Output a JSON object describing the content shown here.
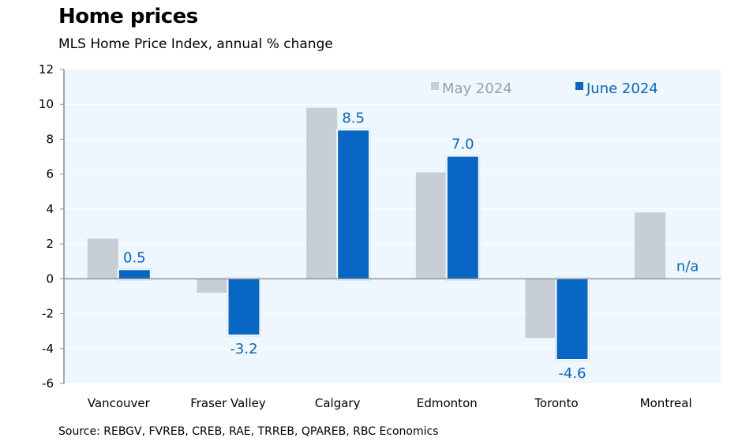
{
  "header": {
    "title": "Home prices",
    "subtitle": "MLS Home Price Index, annual % change"
  },
  "footer": {
    "source": "Source: REBGV, FVREB, CREB, RAE, TRREB, QPAREB, RBC Economics"
  },
  "colors": {
    "may": "#c8ced6",
    "june": "#0866c4",
    "plot_bg": "#eef6fe",
    "may_legend_text": "#9aa0a8"
  },
  "chart_data": {
    "type": "bar",
    "title": "Home prices",
    "subtitle": "MLS Home Price Index, annual % change",
    "xlabel": "",
    "ylabel": "",
    "ylim": [
      -6,
      12
    ],
    "yticks": [
      12,
      10,
      8,
      6,
      4,
      2,
      0,
      -2,
      -4,
      -6
    ],
    "ytick_labels": [
      "12",
      "10",
      "8",
      "6",
      "4",
      "2",
      "0",
      "-2",
      "-4",
      "-6"
    ],
    "grid": true,
    "legend_position": "top-right",
    "categories": [
      "Vancouver",
      "Fraser Valley",
      "Calgary",
      "Edmonton",
      "Toronto",
      "Montreal"
    ],
    "series": [
      {
        "name": "May 2024",
        "values": [
          2.3,
          -0.8,
          9.8,
          6.1,
          -3.4,
          3.8
        ],
        "labels": [
          null,
          null,
          null,
          null,
          null,
          null
        ]
      },
      {
        "name": "June 2024",
        "values": [
          0.5,
          -3.2,
          8.5,
          7.0,
          -4.6,
          null
        ],
        "labels": [
          "0.5",
          "-3.2",
          "8.5",
          "7.0",
          "-4.6",
          "n/a"
        ]
      }
    ],
    "source": "Source: REBGV, FVREB, CREB, RAE, TRREB, QPAREB, RBC Economics"
  }
}
